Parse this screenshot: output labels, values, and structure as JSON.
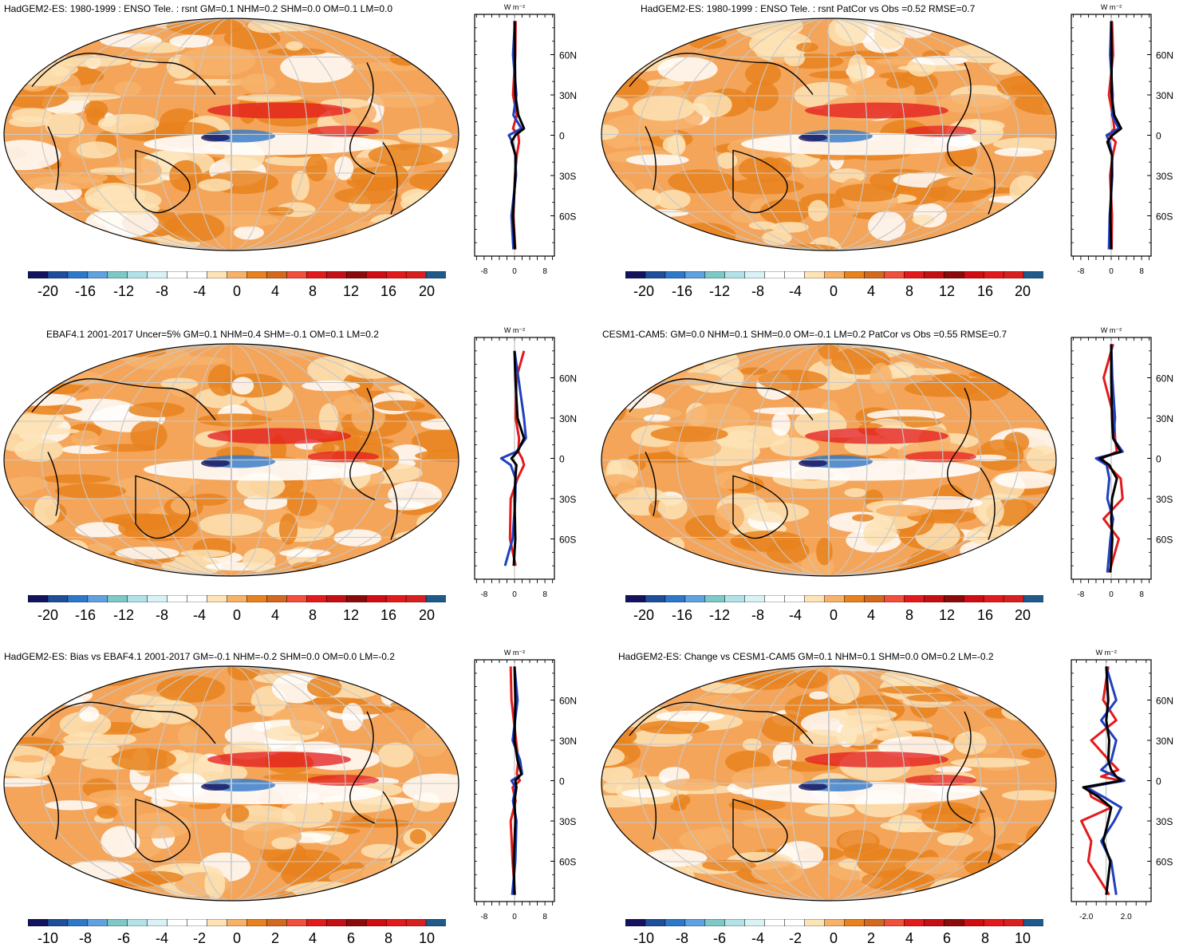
{
  "chart_data": [
    {
      "type": "heatmap",
      "title": "HadGEM2-ES: 1980-1999 : ENSO Tele. : rsnt GM=0.1 NHM=0.2 SHM=0.0 OM=0.1 LM=0.0",
      "colorbar_ticks": [
        "-20",
        "-16",
        "-12",
        "-8",
        "-4",
        "0",
        "4",
        "8",
        "12",
        "16",
        "20"
      ],
      "zonal": {
        "unit": "W m⁻²",
        "xticks": [
          "-8",
          "0",
          "8"
        ],
        "yticks": [
          "60N",
          "30N",
          "0",
          "30S",
          "60S"
        ],
        "series": [
          {
            "name": "red",
            "color": "#e31a1c",
            "lat": [
              85,
              60,
              30,
              15,
              5,
              0,
              -5,
              -15,
              -30,
              -60,
              -85
            ],
            "values": [
              0.3,
              0.2,
              -0.4,
              0.6,
              -0.4,
              1.0,
              1.2,
              0.6,
              0.1,
              -0.3,
              0.2
            ]
          },
          {
            "name": "blue",
            "color": "#1f3fbf",
            "lat": [
              85,
              60,
              30,
              15,
              5,
              0,
              -5,
              -15,
              -30,
              -60,
              -85
            ],
            "values": [
              0.1,
              -0.4,
              0.5,
              -0.3,
              1.8,
              -1.5,
              -0.6,
              0.2,
              0.4,
              -0.8,
              -0.3
            ]
          },
          {
            "name": "black",
            "color": "#000000",
            "lat": [
              85,
              60,
              30,
              15,
              5,
              0,
              -5,
              -15,
              -30,
              -60,
              -85
            ],
            "values": [
              0.0,
              0.1,
              0.2,
              1.0,
              2.5,
              0.2,
              -0.8,
              0.3,
              0.2,
              -0.4,
              0.1
            ]
          }
        ]
      }
    },
    {
      "type": "heatmap",
      "title": "HadGEM2-ES: 1980-1999 : ENSO Tele. : rsnt PatCor vs Obs =0.52 RMSE=0.7",
      "colorbar_ticks": [
        "-20",
        "-16",
        "-12",
        "-8",
        "-4",
        "0",
        "4",
        "8",
        "12",
        "16",
        "20"
      ],
      "zonal": {
        "unit": "W m⁻²",
        "xticks": [
          "-8",
          "0",
          "8"
        ],
        "yticks": [
          "60N",
          "30N",
          "0",
          "30S",
          "60S"
        ],
        "series": [
          {
            "name": "red",
            "color": "#e31a1c",
            "lat": [
              85,
              60,
              30,
              15,
              5,
              0,
              -5,
              -15,
              -30,
              -60,
              -85
            ],
            "values": [
              0.2,
              0.5,
              -0.6,
              0.4,
              0.8,
              -0.5,
              1.2,
              0.4,
              -0.3,
              0.2,
              0.1
            ]
          },
          {
            "name": "blue",
            "color": "#1f3fbf",
            "lat": [
              85,
              60,
              30,
              15,
              5,
              0,
              -5,
              -15,
              -30,
              -60,
              -85
            ],
            "values": [
              0.0,
              -0.3,
              0.4,
              0.2,
              2.0,
              -1.2,
              -0.5,
              0.2,
              0.3,
              -0.4,
              -0.6
            ]
          },
          {
            "name": "black",
            "color": "#000000",
            "lat": [
              85,
              60,
              30,
              15,
              5,
              0,
              -5,
              -15,
              -30,
              -60,
              -85
            ],
            "values": [
              0.0,
              0.1,
              0.1,
              0.8,
              2.6,
              0.3,
              -1.0,
              0.2,
              0.1,
              -0.2,
              0.0
            ]
          }
        ]
      }
    },
    {
      "type": "heatmap",
      "title": "EBAF4.1 2001-2017 Uncer=5% GM=0.1 NHM=0.4 SHM=-0.1 OM=0.1 LM=0.2",
      "colorbar_ticks": [
        "-20",
        "-16",
        "-12",
        "-8",
        "-4",
        "0",
        "4",
        "8",
        "12",
        "16",
        "20"
      ],
      "zonal": {
        "unit": "W m⁻²",
        "xticks": [
          "-8",
          "0",
          "8"
        ],
        "yticks": [
          "60N",
          "30N",
          "0",
          "30S",
          "60S"
        ],
        "series": [
          {
            "name": "red",
            "color": "#e31a1c",
            "lat": [
              80,
              60,
              30,
              15,
              5,
              0,
              -5,
              -15,
              -30,
              -60,
              -80
            ],
            "values": [
              2.5,
              0.5,
              0.3,
              1.2,
              1.0,
              2.0,
              2.5,
              0.8,
              -1.0,
              -1.2,
              0.3
            ]
          },
          {
            "name": "blue",
            "color": "#1f3fbf",
            "lat": [
              80,
              60,
              30,
              15,
              5,
              0,
              -5,
              -15,
              -30,
              -60,
              -80
            ],
            "values": [
              0.0,
              1.0,
              2.5,
              3.0,
              0.5,
              -3.5,
              -1.0,
              0.3,
              0.2,
              -0.5,
              -2.5
            ]
          },
          {
            "name": "black",
            "color": "#000000",
            "lat": [
              80,
              60,
              30,
              15,
              5,
              0,
              -5,
              -15,
              -30,
              -60,
              -80
            ],
            "values": [
              0.0,
              0.2,
              0.8,
              2.5,
              0.8,
              -0.8,
              0.5,
              0.2,
              0.0,
              0.2,
              -0.2
            ]
          }
        ]
      }
    },
    {
      "type": "heatmap",
      "title": "CESM1-CAM5: GM=0.0 NHM=0.1 SHM=0.0 OM=-0.1 LM=0.2 PatCor vs Obs =0.55 RMSE=0.7",
      "colorbar_ticks": [
        "-20",
        "-16",
        "-12",
        "-8",
        "-4",
        "0",
        "4",
        "8",
        "12",
        "16",
        "20"
      ],
      "zonal": {
        "unit": "W m⁻²",
        "xticks": [
          "-8",
          "0",
          "8"
        ],
        "yticks": [
          "60N",
          "30N",
          "0",
          "30S",
          "60S"
        ],
        "series": [
          {
            "name": "red",
            "color": "#e31a1c",
            "lat": [
              85,
              60,
              30,
              15,
              5,
              0,
              -5,
              -15,
              -30,
              -45,
              -60,
              -85
            ],
            "values": [
              0.5,
              -2.0,
              0.8,
              1.0,
              1.5,
              -2.5,
              -1.0,
              2.5,
              3.0,
              -2.0,
              2.0,
              -0.5
            ]
          },
          {
            "name": "blue",
            "color": "#1f3fbf",
            "lat": [
              85,
              60,
              30,
              15,
              5,
              0,
              -5,
              -15,
              -30,
              -45,
              -60,
              -85
            ],
            "values": [
              0.0,
              0.3,
              1.0,
              0.5,
              3.0,
              -4.0,
              -1.2,
              -0.5,
              -1.0,
              0.5,
              -0.2,
              -1.0
            ]
          },
          {
            "name": "black",
            "color": "#000000",
            "lat": [
              85,
              60,
              30,
              15,
              5,
              0,
              -5,
              -15,
              -30,
              -45,
              -60,
              -85
            ],
            "values": [
              0.0,
              0.0,
              0.2,
              0.5,
              2.5,
              -3.0,
              -0.5,
              1.5,
              0.2,
              0.0,
              0.3,
              -0.2
            ]
          }
        ]
      }
    },
    {
      "type": "heatmap",
      "title": "HadGEM2-ES: Bias vs EBAF4.1 2001-2017 GM=-0.1 NHM=-0.2 SHM=0.0 OM=0.0 LM=-0.2",
      "colorbar_ticks": [
        "-10",
        "-8",
        "-6",
        "-4",
        "-2",
        "0",
        "2",
        "4",
        "6",
        "8",
        "10"
      ],
      "zonal": {
        "unit": "W m⁻²",
        "xticks": [
          "-8",
          "0",
          "8"
        ],
        "yticks": [
          "60N",
          "30N",
          "0",
          "30S",
          "60S"
        ],
        "series": [
          {
            "name": "red",
            "color": "#e31a1c",
            "lat": [
              85,
              60,
              30,
              15,
              5,
              0,
              -5,
              -15,
              -30,
              -60,
              -85
            ],
            "values": [
              -1.0,
              -0.8,
              0.4,
              1.0,
              0.6,
              1.4,
              -0.5,
              0.3,
              -1.0,
              -0.5,
              0.1
            ]
          },
          {
            "name": "blue",
            "color": "#1f3fbf",
            "lat": [
              85,
              60,
              30,
              15,
              5,
              0,
              -5,
              -15,
              -30,
              -60,
              -85
            ],
            "values": [
              0.0,
              0.8,
              -0.5,
              1.5,
              2.0,
              -0.8,
              0.3,
              -0.4,
              0.5,
              0.2,
              -0.6
            ]
          },
          {
            "name": "black",
            "color": "#000000",
            "lat": [
              85,
              60,
              30,
              15,
              5,
              0,
              -5,
              -15,
              -30,
              -60,
              -85
            ],
            "values": [
              0.0,
              0.2,
              0.0,
              0.8,
              1.8,
              0.2,
              0.5,
              0.0,
              0.2,
              -0.2,
              0.0
            ]
          }
        ]
      }
    },
    {
      "type": "heatmap",
      "title": "HadGEM2-ES: Change vs CESM1-CAM5 GM=0.1 NHM=0.1 SHM=0.0 OM=0.2 LM=-0.2",
      "colorbar_ticks": [
        "-10",
        "-8",
        "-6",
        "-4",
        "-2",
        "0",
        "2",
        "4",
        "6",
        "8",
        "10"
      ],
      "zonal": {
        "unit": "W m⁻²",
        "xticks": [
          "-2.0",
          "2.0"
        ],
        "yticks": [
          "60N",
          "30N",
          "0",
          "30S",
          "60S"
        ],
        "series": [
          {
            "name": "red",
            "color": "#e31a1c",
            "lat": [
              85,
              60,
              45,
              30,
              15,
              8,
              3,
              0,
              -5,
              -12,
              -20,
              -30,
              -45,
              -60,
              -85
            ],
            "values": [
              0.2,
              -0.3,
              1.0,
              -1.5,
              0.3,
              1.2,
              -0.5,
              1.5,
              -1.8,
              -1.5,
              0.5,
              -2.5,
              -1.5,
              -1.8,
              0.3
            ]
          },
          {
            "name": "blue",
            "color": "#1f3fbf",
            "lat": [
              85,
              60,
              45,
              30,
              15,
              8,
              3,
              0,
              -5,
              -12,
              -20,
              -30,
              -45,
              -60,
              -85
            ],
            "values": [
              0.0,
              1.0,
              -0.5,
              1.0,
              0.5,
              -0.5,
              1.0,
              1.8,
              -2.0,
              -0.3,
              1.5,
              0.8,
              -0.5,
              0.5,
              1.0
            ]
          },
          {
            "name": "black",
            "color": "#000000",
            "lat": [
              85,
              60,
              45,
              30,
              15,
              8,
              3,
              0,
              -5,
              -12,
              -20,
              -30,
              -45,
              -60,
              -85
            ],
            "values": [
              0.0,
              0.2,
              0.0,
              0.3,
              0.2,
              0.5,
              1.0,
              1.5,
              -2.3,
              -0.8,
              0.5,
              0.2,
              -0.3,
              0.4,
              0.0
            ]
          }
        ]
      }
    }
  ]
}
